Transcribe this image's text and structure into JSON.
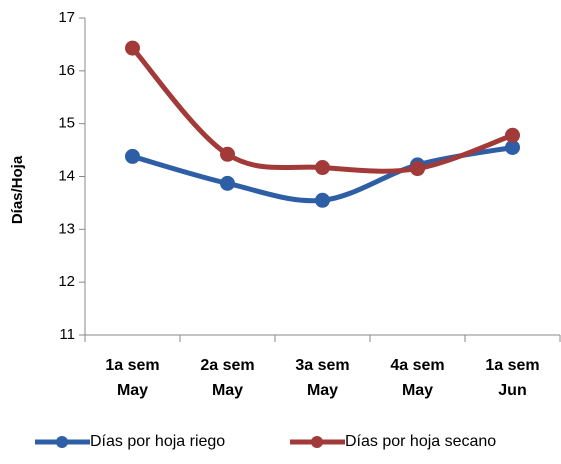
{
  "chart_data": {
    "type": "line",
    "y_label": "Días/Hoja",
    "categories": [
      [
        "1a sem",
        "May"
      ],
      [
        "2a sem",
        "May"
      ],
      [
        "3a sem",
        "May"
      ],
      [
        "4a sem",
        "May"
      ],
      [
        "1a sem",
        "Jun"
      ]
    ],
    "series": [
      {
        "name": "Días por hoja riego",
        "color": "#2e5fa6",
        "values": [
          14.38,
          13.87,
          13.55,
          14.22,
          14.55
        ]
      },
      {
        "name": "Días por hoja secano",
        "color": "#a33a3a",
        "values": [
          16.43,
          14.42,
          14.17,
          14.15,
          14.78
        ]
      }
    ],
    "ylim": [
      11,
      17
    ],
    "yticks": [
      11,
      12,
      13,
      14,
      15,
      16,
      17
    ],
    "grid": false,
    "smooth": true,
    "legend": "bottom"
  }
}
